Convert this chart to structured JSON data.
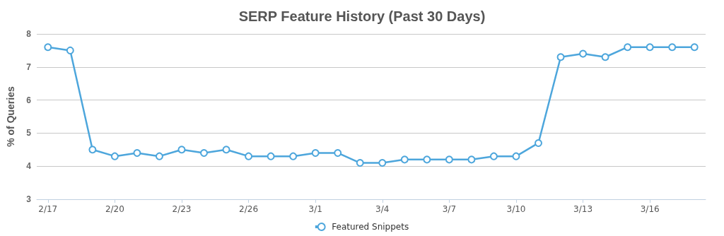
{
  "chart_data": {
    "type": "line",
    "title": "SERP Feature History (Past 30 Days)",
    "ylabel": "% of Queries",
    "categories": [
      "2/17",
      null,
      null,
      "2/20",
      null,
      null,
      "2/23",
      null,
      null,
      "2/26",
      null,
      null,
      "3/1",
      null,
      null,
      "3/4",
      null,
      null,
      "3/7",
      null,
      null,
      "3/10",
      null,
      null,
      "3/13",
      null,
      null,
      "3/16",
      null,
      null
    ],
    "series": [
      {
        "name": "Featured Snippets",
        "color": "#4da6dc",
        "values": [
          7.6,
          7.5,
          4.5,
          4.3,
          4.4,
          4.3,
          4.5,
          4.4,
          4.5,
          4.3,
          4.3,
          4.3,
          4.4,
          4.4,
          4.1,
          4.1,
          4.2,
          4.2,
          4.2,
          4.2,
          4.3,
          4.3,
          4.7,
          7.3,
          7.4,
          7.3,
          7.6,
          7.6,
          7.6,
          7.6
        ]
      }
    ],
    "ylim": [
      3,
      8
    ],
    "yticks": [
      3,
      4,
      5,
      6,
      7,
      8
    ],
    "grid": "y",
    "legend": "bottom",
    "marker": "circle",
    "line_style": "solid"
  }
}
